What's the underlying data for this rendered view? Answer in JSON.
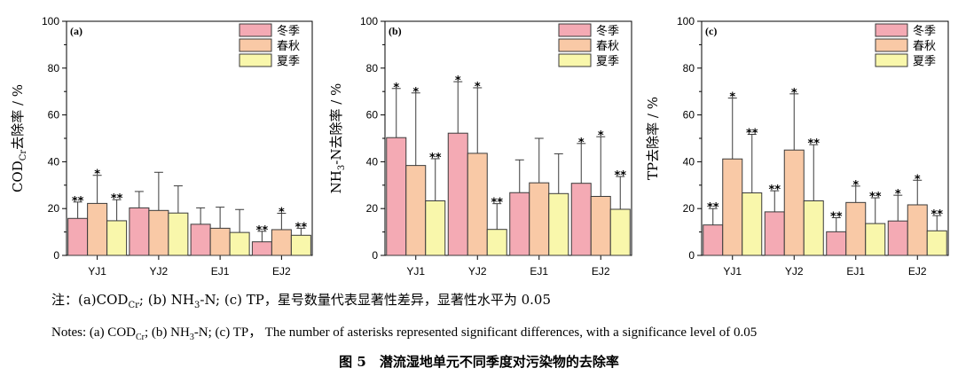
{
  "colors": {
    "winter": "#f4aab4",
    "spring_autumn": "#f9c9a6",
    "summer": "#f9f7ab",
    "stroke": "#3a3a3a"
  },
  "chart_data": [
    {
      "type": "bar",
      "panel_label": "(a)",
      "ylabel_main": "COD",
      "ylabel_sub": "Cr",
      "ylabel_rest": "去除率 / %",
      "ylim": [
        0,
        100
      ],
      "yticks": [
        0,
        20,
        40,
        60,
        80,
        100
      ],
      "categories": [
        "YJ1",
        "YJ2",
        "EJ1",
        "EJ2"
      ],
      "legend": [
        "冬季",
        "春秋",
        "夏季"
      ],
      "series": [
        {
          "name": "冬季",
          "values": [
            15.8,
            20.3,
            13.3,
            5.8
          ],
          "err": [
            7,
            7,
            7,
            4.5
          ],
          "sig": [
            "**",
            "",
            "",
            "**"
          ]
        },
        {
          "name": "春秋",
          "values": [
            22.2,
            19.2,
            11.6,
            11.0
          ],
          "err": [
            12,
            16.3,
            9,
            7
          ],
          "sig": [
            "*",
            "",
            "",
            "*"
          ]
        },
        {
          "name": "夏季",
          "values": [
            14.8,
            18.1,
            9.8,
            8.6
          ],
          "err": [
            9,
            11.6,
            9.8,
            3
          ],
          "sig": [
            "**",
            "",
            "",
            "**"
          ]
        }
      ]
    },
    {
      "type": "bar",
      "panel_label": "(b)",
      "ylabel_main": "NH",
      "ylabel_sub": "3",
      "ylabel_rest": "-N去除率 / %",
      "ylim": [
        0,
        100
      ],
      "yticks": [
        0,
        20,
        40,
        60,
        80,
        100
      ],
      "categories": [
        "YJ1",
        "YJ2",
        "EJ1",
        "EJ2"
      ],
      "legend": [
        "冬季",
        "春秋",
        "夏季"
      ],
      "series": [
        {
          "name": "冬季",
          "values": [
            50.3,
            52.2,
            26.8,
            30.8
          ],
          "err": [
            21,
            22,
            14,
            17
          ],
          "sig": [
            "*",
            "*",
            "",
            "*"
          ]
        },
        {
          "name": "春秋",
          "values": [
            38.4,
            43.6,
            31.0,
            25.2
          ],
          "err": [
            31,
            28,
            19,
            25.5
          ],
          "sig": [
            "*",
            "*",
            "",
            "*"
          ]
        },
        {
          "name": "夏季",
          "values": [
            23.3,
            11.1,
            26.4,
            19.7
          ],
          "err": [
            18,
            11,
            17,
            14
          ],
          "sig": [
            "**",
            "**",
            "",
            "**"
          ]
        }
      ]
    },
    {
      "type": "bar",
      "panel_label": "(c)",
      "ylabel_main": "TP去除率 / %",
      "ylabel_sub": "",
      "ylabel_rest": "",
      "ylim": [
        0,
        100
      ],
      "yticks": [
        0,
        20,
        40,
        60,
        80,
        100
      ],
      "categories": [
        "YJ1",
        "YJ2",
        "EJ1",
        "EJ2"
      ],
      "legend": [
        "冬季",
        "春秋",
        "夏季"
      ],
      "series": [
        {
          "name": "冬季",
          "values": [
            13.0,
            18.6,
            10.1,
            14.7
          ],
          "err": [
            7,
            9,
            6,
            11
          ],
          "sig": [
            "**",
            "**",
            "**",
            "*"
          ]
        },
        {
          "name": "春秋",
          "values": [
            41.2,
            45.0,
            22.6,
            21.6
          ],
          "err": [
            26,
            24,
            7,
            10.5
          ],
          "sig": [
            "*",
            "*",
            "*",
            "*"
          ]
        },
        {
          "name": "夏季",
          "values": [
            26.7,
            23.3,
            13.6,
            10.5
          ],
          "err": [
            25,
            24,
            11,
            6.5
          ],
          "sig": [
            "**",
            "**",
            "**",
            "**"
          ]
        }
      ]
    }
  ],
  "notes": {
    "cn_prefix": "注：(a)COD",
    "cn_sub": "Cr",
    "cn_rest": "; (b) NH",
    "cn_sub2": "3",
    "cn_tail": "-N; (c) TP，星号数量代表显著性差异，显著性水平为 0.05",
    "en_prefix": "Notes: (a) COD",
    "en_sub": "Cr",
    "en_rest": "; (b) NH",
    "en_sub2": "3",
    "en_tail": "-N; (c) TP， The number of asterisks represented significant differences, with a significance level of 0.05"
  },
  "figure_title": "图 5　潜流湿地单元不同季度对污染物的去除率"
}
